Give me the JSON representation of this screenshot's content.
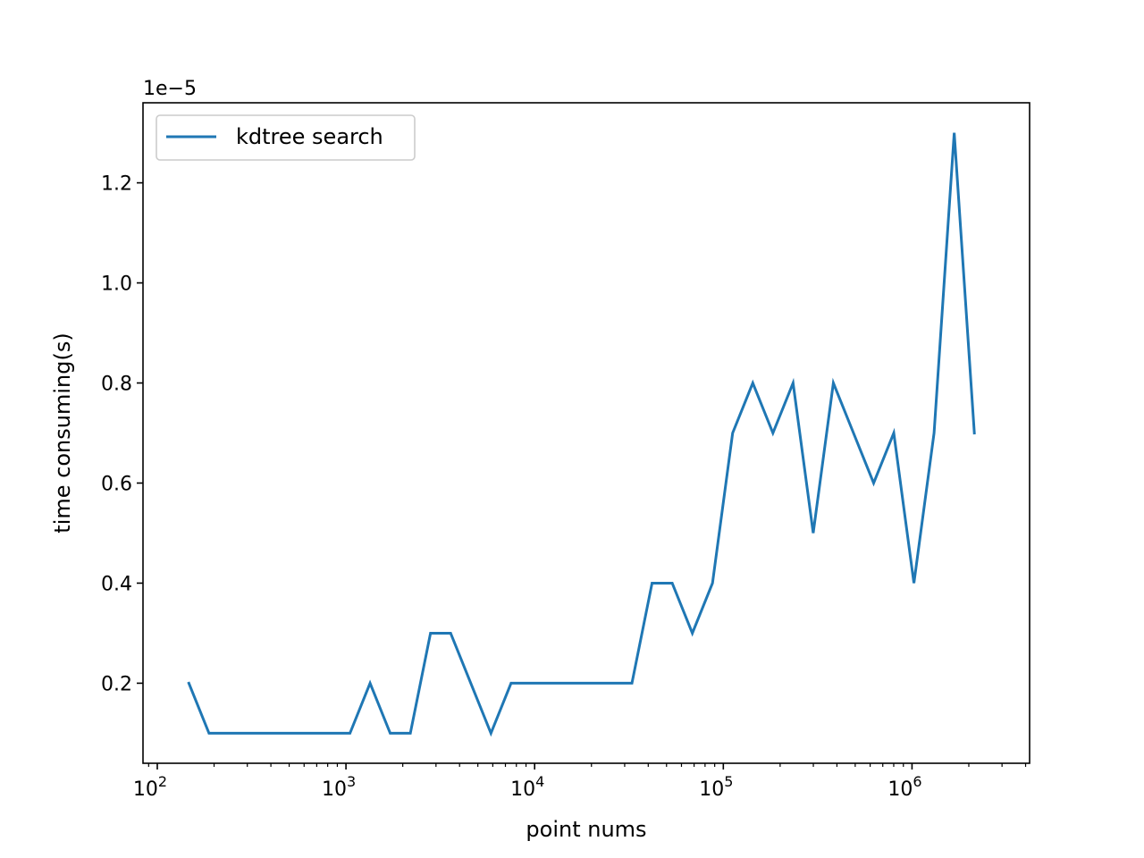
{
  "chart_data": {
    "type": "line",
    "xscale": "log",
    "xlabel": "point nums",
    "ylabel": "time consuming(s)",
    "y_offset_label": "1e−5",
    "y_multiplier": 1e-05,
    "xlim": [
      84,
      4200000
    ],
    "ylim": [
      0.04,
      1.36
    ],
    "x_ticks": [
      {
        "value": 100,
        "base": "10",
        "exp": "2"
      },
      {
        "value": 1000,
        "base": "10",
        "exp": "3"
      },
      {
        "value": 10000,
        "base": "10",
        "exp": "4"
      },
      {
        "value": 100000,
        "base": "10",
        "exp": "5"
      },
      {
        "value": 1000000,
        "base": "10",
        "exp": "6"
      }
    ],
    "y_ticks": [
      {
        "value": 0.2,
        "label": "0.2"
      },
      {
        "value": 0.4,
        "label": "0.4"
      },
      {
        "value": 0.6,
        "label": "0.6"
      },
      {
        "value": 0.8,
        "label": "0.8"
      },
      {
        "value": 1.0,
        "label": "1.0"
      },
      {
        "value": 1.2,
        "label": "1.2"
      }
    ],
    "grid": false,
    "legend_position": "top-left",
    "series": [
      {
        "name": "kdtree search",
        "color": "#1f77b4",
        "x": [
          147,
          188,
          240,
          307,
          393,
          502,
          642,
          821,
          1050,
          1342,
          1716,
          2194,
          2806,
          3587,
          4587,
          5866,
          7500,
          9590,
          12262,
          15680,
          20048,
          25634,
          32777,
          41910,
          53590,
          68524,
          87620,
          112038,
          143260,
          183180,
          234230,
          299500,
          382960,
          489680,
          626130,
          800610,
          1023700,
          1309000,
          1673800,
          2140100
        ],
        "y": [
          0.2,
          0.1,
          0.1,
          0.1,
          0.1,
          0.1,
          0.1,
          0.1,
          0.1,
          0.2,
          0.1,
          0.1,
          0.3,
          0.3,
          0.2,
          0.1,
          0.2,
          0.2,
          0.2,
          0.2,
          0.2,
          0.2,
          0.2,
          0.4,
          0.4,
          0.3,
          0.4,
          0.7,
          0.8,
          0.7,
          0.8,
          0.5,
          0.8,
          0.7,
          0.6,
          0.7,
          0.4,
          0.7,
          1.3,
          0.7
        ]
      }
    ]
  }
}
